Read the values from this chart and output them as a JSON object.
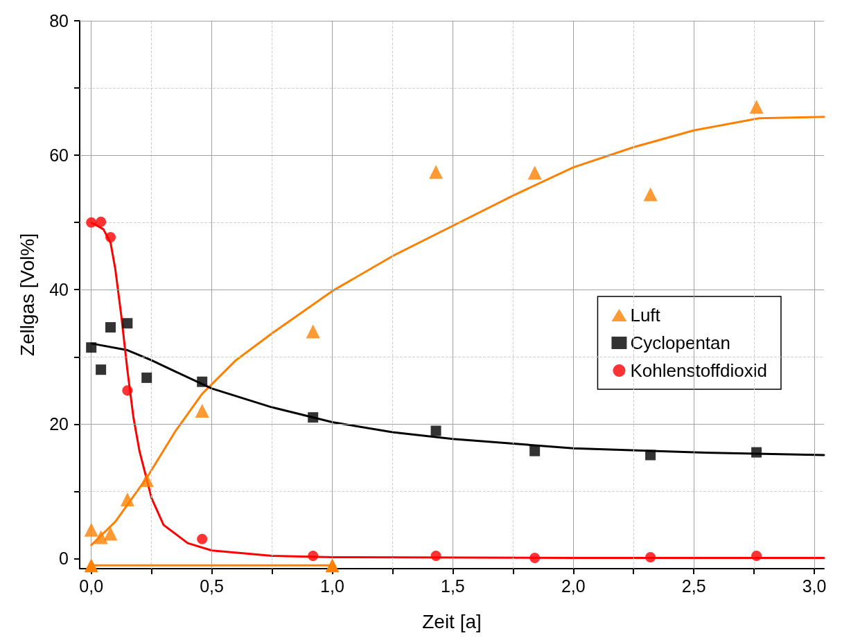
{
  "chart_data": {
    "type": "scatter",
    "xlabel": "Zeit [a]",
    "ylabel": "Zellgas [Vol%]",
    "xlim": [
      -0.048,
      3.04
    ],
    "ylim": [
      -1.5,
      80
    ],
    "xticks": [
      {
        "value": 0,
        "label": "0,0"
      },
      {
        "value": 0.25,
        "label": null
      },
      {
        "value": 0.5,
        "label": "0,5"
      },
      {
        "value": 0.75,
        "label": null
      },
      {
        "value": 1,
        "label": "1,0"
      },
      {
        "value": 1.25,
        "label": null
      },
      {
        "value": 1.5,
        "label": "1,5"
      },
      {
        "value": 1.75,
        "label": null
      },
      {
        "value": 2,
        "label": "2,0"
      },
      {
        "value": 2.25,
        "label": null
      },
      {
        "value": 2.5,
        "label": "2,5"
      },
      {
        "value": 2.75,
        "label": null
      },
      {
        "value": 3,
        "label": "3,0"
      }
    ],
    "yticks": [
      0,
      {
        "value": 10,
        "label": null
      },
      20,
      {
        "value": 30,
        "label": null
      },
      40,
      {
        "value": 50,
        "label": null
      },
      60,
      {
        "value": 70,
        "label": null
      },
      80
    ],
    "grid": true,
    "legend": "right",
    "series": [
      {
        "name": "Luft",
        "type": "scatter",
        "color": "#ff8000",
        "marker": "triangle",
        "x": [
          0,
          0.04,
          0.08,
          0.15,
          0.23,
          0.46,
          0.92,
          1.43,
          1.84,
          2.32,
          2.76
        ],
        "values": [
          4.3,
          3.2,
          3.7,
          8.8,
          11.7,
          22,
          33.8,
          57.5,
          57.4,
          54.2,
          67.2
        ]
      },
      {
        "name": "Cyclopentan",
        "type": "scatter",
        "color": "#000000",
        "marker": "square",
        "x": [
          0,
          0.04,
          0.08,
          0.15,
          0.23,
          0.46,
          0.92,
          1.43,
          1.84,
          2.32,
          2.76
        ],
        "values": [
          31.4,
          28.1,
          34.4,
          35,
          26.9,
          26.3,
          21,
          19,
          16,
          15.4,
          15.8
        ]
      },
      {
        "name": "Kohlenstoffdioxid",
        "type": "scatter",
        "color": "#ff0000",
        "marker": "circle",
        "x": [
          0,
          0.04,
          0.08,
          0.15,
          0.46,
          0.92,
          1.43,
          1.84,
          2.32,
          2.76
        ],
        "values": [
          50,
          50.1,
          47.8,
          25,
          2.9,
          0.4,
          0.4,
          0.1,
          0.2,
          0.4
        ]
      },
      {
        "type": "line",
        "color": "#ff8000",
        "marker": "none",
        "x": [
          0,
          0.1,
          0.23,
          0.35,
          0.46,
          0.6,
          0.75,
          1.0,
          1.25,
          1.5,
          1.75,
          2.0,
          2.25,
          2.5,
          2.77,
          3.04
        ],
        "values": [
          2,
          5.5,
          12,
          19,
          24.5,
          29.5,
          33.5,
          39.8,
          45,
          49.5,
          54,
          58.2,
          61.2,
          63.7,
          65.5,
          65.7
        ]
      },
      {
        "type": "line",
        "color": "#000000",
        "marker": "none",
        "x": [
          0,
          0.15,
          0.25,
          0.35,
          0.5,
          0.75,
          1.0,
          1.25,
          1.5,
          2.0,
          2.5,
          3.04
        ],
        "values": [
          32,
          31,
          29.5,
          27.8,
          25.3,
          22.5,
          20.3,
          18.8,
          17.8,
          16.4,
          15.8,
          15.4
        ]
      },
      {
        "type": "line",
        "color": "#ff0000",
        "marker": "none",
        "x": [
          0,
          0.05,
          0.08,
          0.1,
          0.125,
          0.15,
          0.175,
          0.2,
          0.25,
          0.3,
          0.4,
          0.5,
          0.75,
          1.0,
          2.0,
          3.04
        ],
        "values": [
          50,
          49,
          47,
          43,
          36,
          28,
          21,
          16,
          9,
          5,
          2.3,
          1.2,
          0.4,
          0.2,
          0.1,
          0.1
        ]
      },
      {
        "type": "line",
        "color": "#ff8000",
        "marker": "triangle",
        "x": [
          0,
          1
        ],
        "values": [
          -1,
          -1
        ]
      }
    ]
  }
}
